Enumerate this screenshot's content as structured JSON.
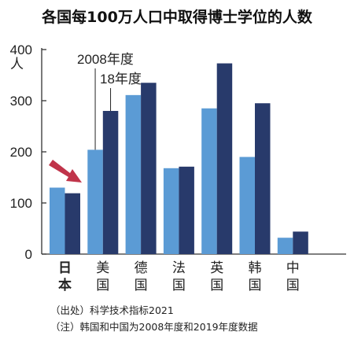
{
  "title": "各国每100万人口中取得博士学位的人数",
  "colors": {
    "series_2008": "#5b9bd5",
    "series_18": "#283a6b",
    "arrow": "#c0344a",
    "axis": "#333333"
  },
  "chart_data": {
    "type": "bar",
    "title": "各国每100万人口中取得博士学位的人数",
    "unit_label": "人",
    "categories": [
      "日本",
      "美国",
      "德国",
      "法国",
      "英国",
      "韩国",
      "中国"
    ],
    "series": [
      {
        "name": "2008年度",
        "values": [
          130,
          204,
          311,
          168,
          285,
          190,
          32
        ]
      },
      {
        "name": "18年度",
        "values": [
          119,
          280,
          335,
          171,
          373,
          295,
          44
        ]
      }
    ],
    "ylim": [
      0,
      400
    ],
    "yticks": [
      0,
      100,
      200,
      300,
      400
    ],
    "highlight_category": "日本",
    "highlight_marker": "arrow",
    "grid": false,
    "legend": "callout-top"
  },
  "notes": {
    "source": "（出处）科学技术指标2021",
    "note": "（注）韩国和中国为2008年度和2019年度数据"
  }
}
